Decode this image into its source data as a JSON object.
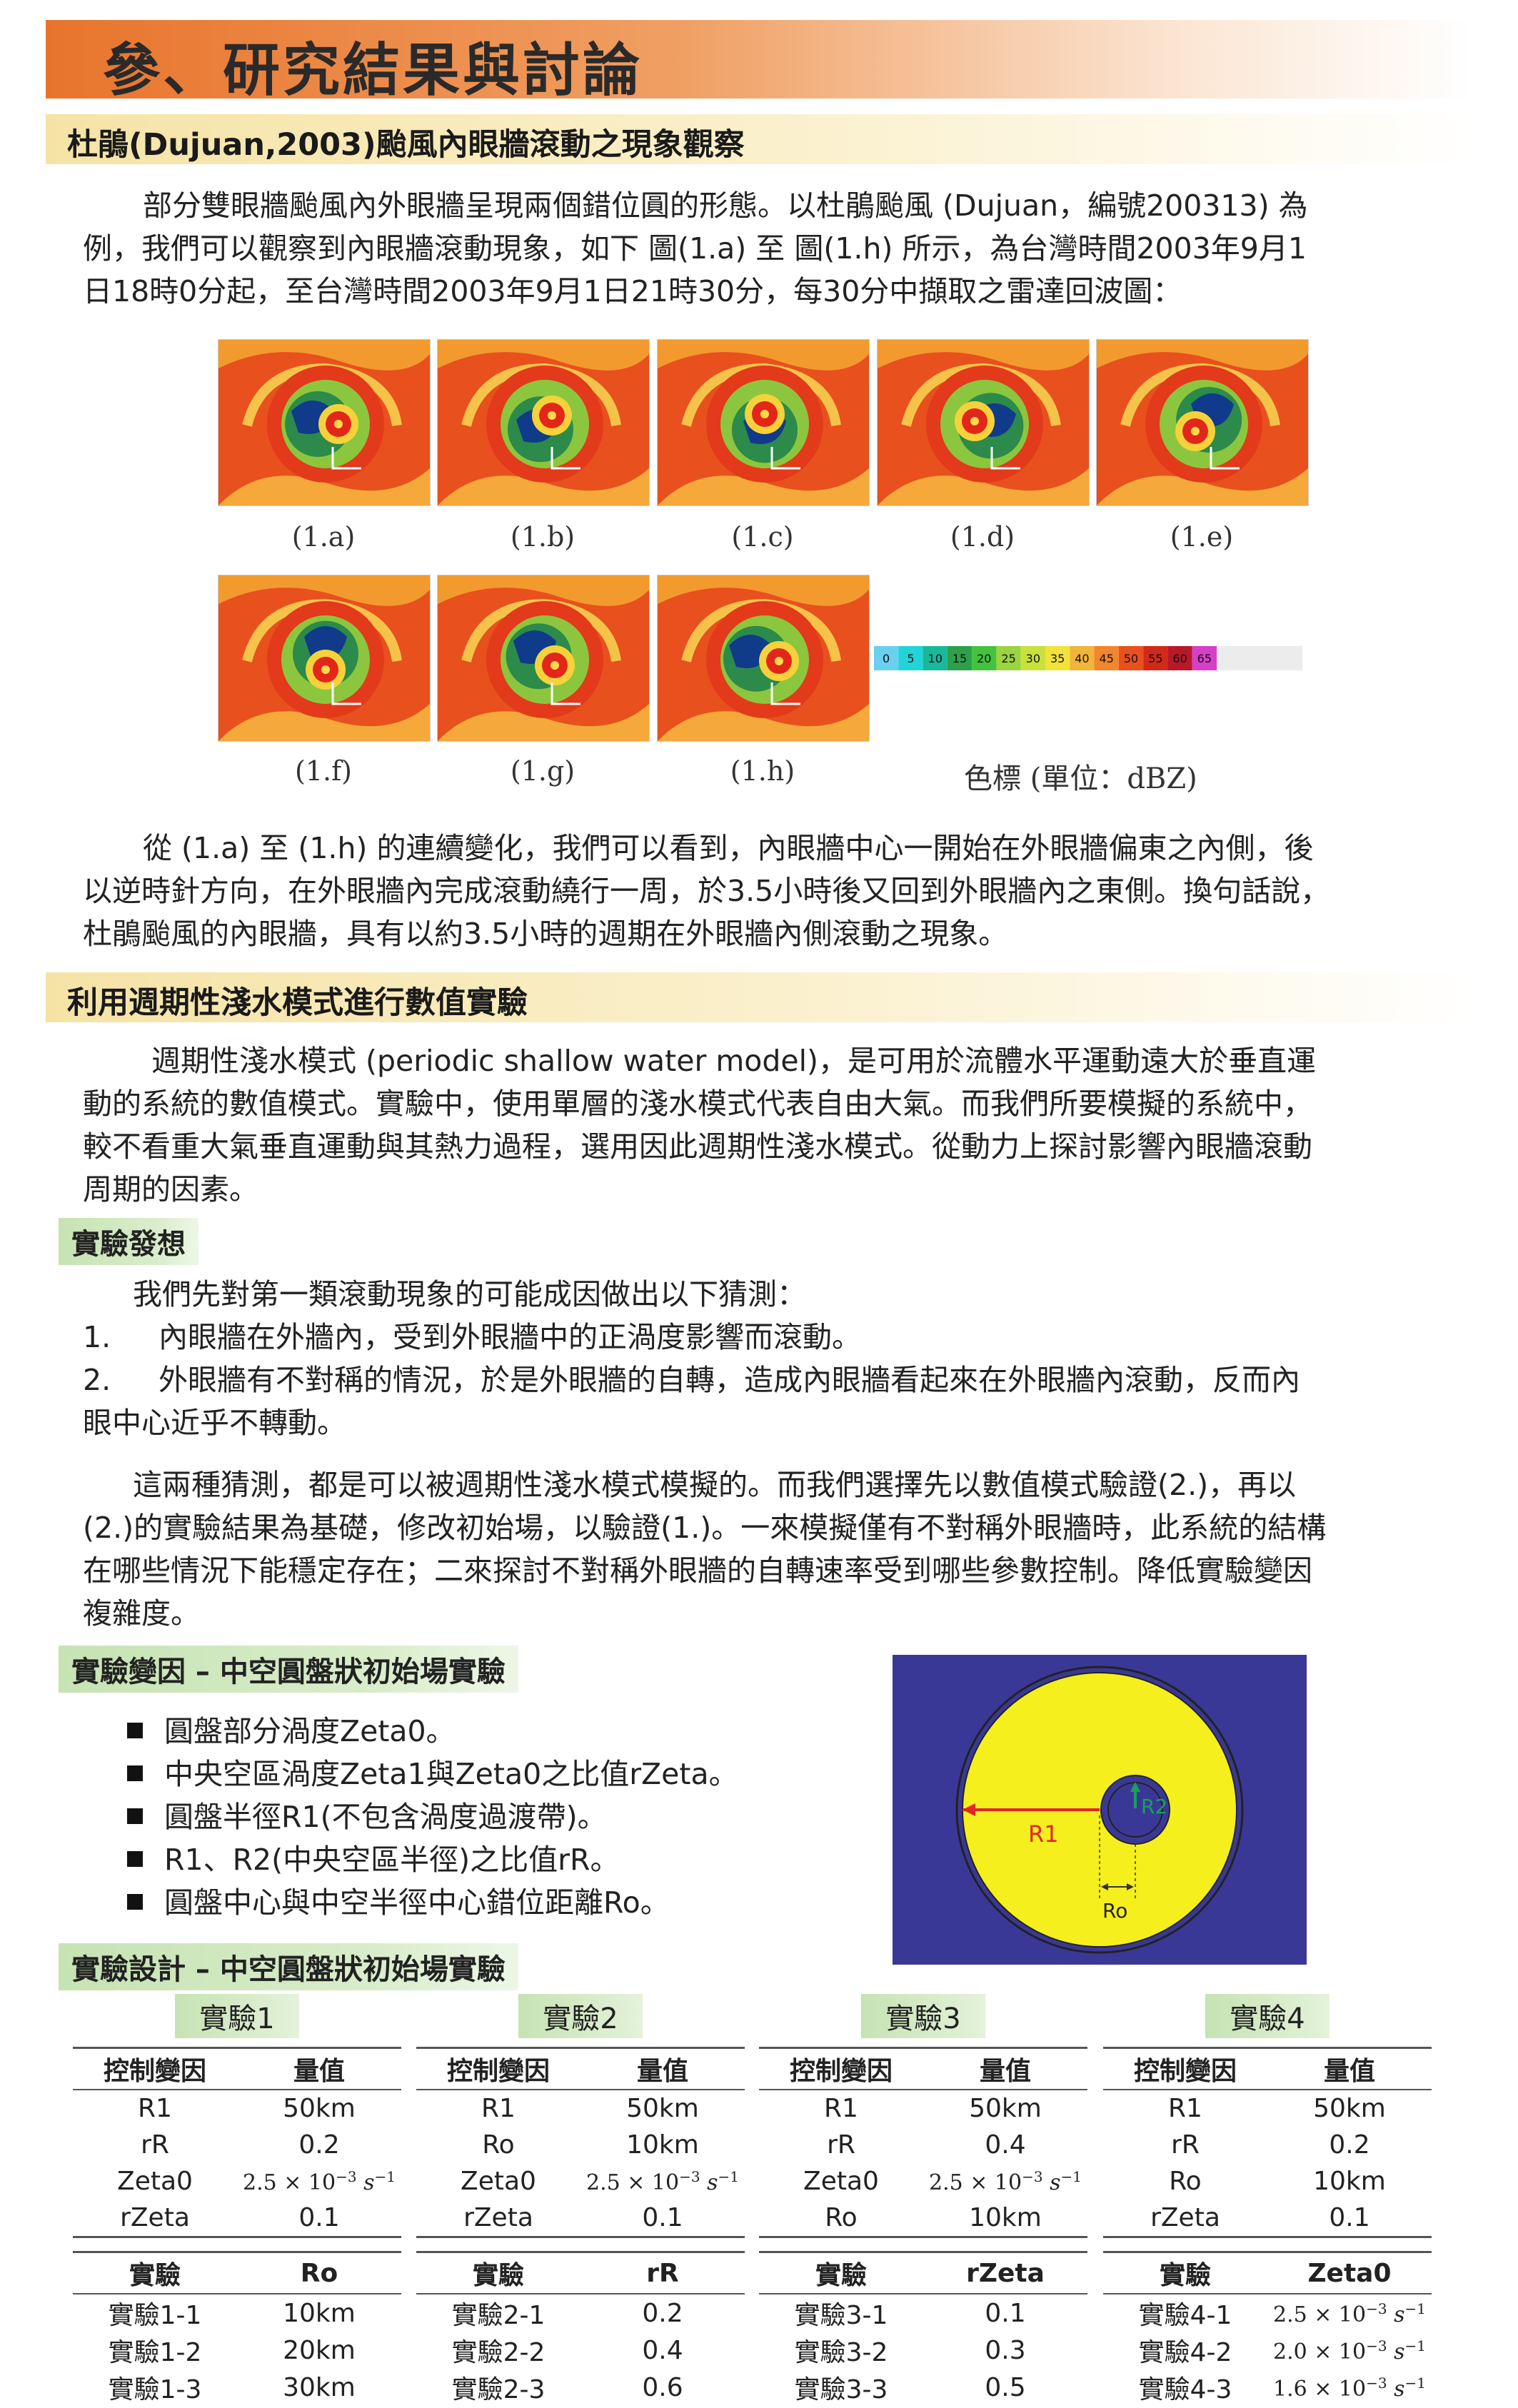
{
  "chapter_title": "參、研究結果與討論",
  "sec1": {
    "title": "杜鵑(Dujuan,2003)颱風內眼牆滾動之現象觀察",
    "para_lines": [
      "部分雙眼牆颱風內外眼牆呈現兩個錯位圓的形態。以杜鵑颱風 (Dujuan，編號200313) 為",
      "例，我們可以觀察到內眼牆滾動現象，如下 圖(1.a) 至 圖(1.h) 所示，為台灣時間2003年9月1",
      "日18時0分起，至台灣時間2003年9月1日21時30分，每30分中擷取之雷達回波圖："
    ],
    "captions": [
      "(1.a)",
      "(1.b)",
      "(1.c)",
      "(1.d)",
      "(1.e)",
      "(1.f)",
      "(1.g)",
      "(1.h)"
    ],
    "colorbar_label": "色標 (單位：dBZ)",
    "colorbar_ticks": [
      "0",
      "5",
      "10",
      "15",
      "20",
      "25",
      "30",
      "35",
      "40",
      "45",
      "50",
      "55",
      "60",
      "65"
    ],
    "para2_lines": [
      "從 (1.a) 至 (1.h) 的連續變化，我們可以看到，內眼牆中心一開始在外眼牆偏東之內側，後",
      "以逆時針方向，在外眼牆內完成滾動繞行一周，於3.5小時後又回到外眼牆內之東側。換句話說，",
      "杜鵑颱風的內眼牆，具有以約3.5小時的週期在外眼牆內側滾動之現象。"
    ]
  },
  "sec2": {
    "title": "利用週期性淺水模式進行數值實驗",
    "para_lines": [
      "週期性淺水模式 (periodic shallow water model)，是可用於流體水平運動遠大於垂直運",
      "動的系統的數值模式。實驗中，使用單層的淺水模式代表自由大氣。而我們所要模擬的系統中，",
      "較不看重大氣垂直運動與其熱力過程，選用因此週期性淺水模式。從動力上探討影響內眼牆滾動",
      "周期的因素。"
    ],
    "idea_tag": "實驗發想",
    "idea_intro": "我們先對第一類滾動現象的可能成因做出以下猜測：",
    "idea_items": [
      {
        "num": "1.",
        "lines": [
          "內眼牆在外牆內，受到外眼牆中的正渦度影響而滾動。"
        ]
      },
      {
        "num": "2.",
        "lines": [
          "外眼牆有不對稱的情況，於是外眼牆的自轉，造成內眼牆看起來在外眼牆內滾動，反而內",
          "眼中心近乎不轉動。"
        ]
      }
    ],
    "para3_lines": [
      "這兩種猜測，都是可以被週期性淺水模式模擬的。而我們選擇先以數值模式驗證(2.)，再以",
      "(2.)的實驗結果為基礎，修改初始場，以驗證(1.)。一來模擬僅有不對稱外眼牆時，此系統的結構",
      "在哪些情況下能穩定存在；二來探討不對稱外眼牆的自轉速率受到哪些參數控制。降低實驗變因",
      "複雜度。"
    ],
    "var_tag": "實驗變因 – 中空圓盤狀初始場實驗",
    "var_items": [
      "圓盤部分渦度Zeta0。",
      "中央空區渦度Zeta1與Zeta0之比值rZeta。",
      "圓盤半徑R1(不包含渦度過渡帶)。",
      "R1、R2(中央空區半徑)之比值rR。",
      "圓盤中心與中空半徑中心錯位距離Ro。"
    ],
    "diagram_labels": {
      "r1": "R1",
      "r2": "R2",
      "ro": "Ro"
    },
    "design_tag": "實驗設計 – 中空圓盤狀初始場實驗"
  },
  "colors": {
    "disk": "#f5ef1e",
    "background": "#3a3896",
    "arrow": "#e0262a",
    "r2_arrow": "#19a05a"
  },
  "experiments": [
    {
      "title": "實驗1",
      "ctrl_headers": [
        "控制變因",
        "量值"
      ],
      "ctrl_rows": [
        [
          "R1",
          "50km"
        ],
        [
          "rR",
          "0.2"
        ],
        [
          "Zeta0",
          "2.5 × 10",
          "−3"
        ],
        [
          "rZeta",
          "0.1"
        ]
      ],
      "exp_headers": [
        "實驗",
        "Ro"
      ],
      "exp_rows": [
        [
          "實驗1-1",
          "10km"
        ],
        [
          "實驗1-2",
          "20km"
        ],
        [
          "實驗1-3",
          "30km"
        ]
      ]
    },
    {
      "title": "實驗2",
      "ctrl_headers": [
        "控制變因",
        "量值"
      ],
      "ctrl_rows": [
        [
          "R1",
          "50km"
        ],
        [
          "Ro",
          "10km"
        ],
        [
          "Zeta0",
          "2.5 × 10",
          "−3"
        ],
        [
          "rZeta",
          "0.1"
        ]
      ],
      "exp_headers": [
        "實驗",
        "rR"
      ],
      "exp_rows": [
        [
          "實驗2-1",
          "0.2"
        ],
        [
          "實驗2-2",
          "0.4"
        ],
        [
          "實驗2-3",
          "0.6"
        ]
      ]
    },
    {
      "title": "實驗3",
      "ctrl_headers": [
        "控制變因",
        "量值"
      ],
      "ctrl_rows": [
        [
          "R1",
          "50km"
        ],
        [
          "rR",
          "0.4"
        ],
        [
          "Zeta0",
          "2.5 × 10",
          "−3"
        ],
        [
          "Ro",
          "10km"
        ]
      ],
      "exp_headers": [
        "實驗",
        "rZeta"
      ],
      "exp_rows": [
        [
          "實驗3-1",
          "0.1"
        ],
        [
          "實驗3-2",
          "0.3"
        ],
        [
          "實驗3-3",
          "0.5"
        ]
      ]
    },
    {
      "title": "實驗4",
      "ctrl_headers": [
        "控制變因",
        "量值"
      ],
      "ctrl_rows": [
        [
          "R1",
          "50km"
        ],
        [
          "rR",
          "0.2"
        ],
        [
          "Ro",
          "10km"
        ],
        [
          "rZeta",
          "0.1"
        ]
      ],
      "exp_headers": [
        "實驗",
        "Zeta0"
      ],
      "exp_rows": [
        [
          "實驗4-1",
          "2.5 × 10",
          "−3"
        ],
        [
          "實驗4-2",
          "2.0 × 10",
          "−3"
        ],
        [
          "實驗4-3",
          "1.6 × 10",
          "−3"
        ]
      ]
    }
  ],
  "unit_s": "s",
  "unit_exp": "−1"
}
